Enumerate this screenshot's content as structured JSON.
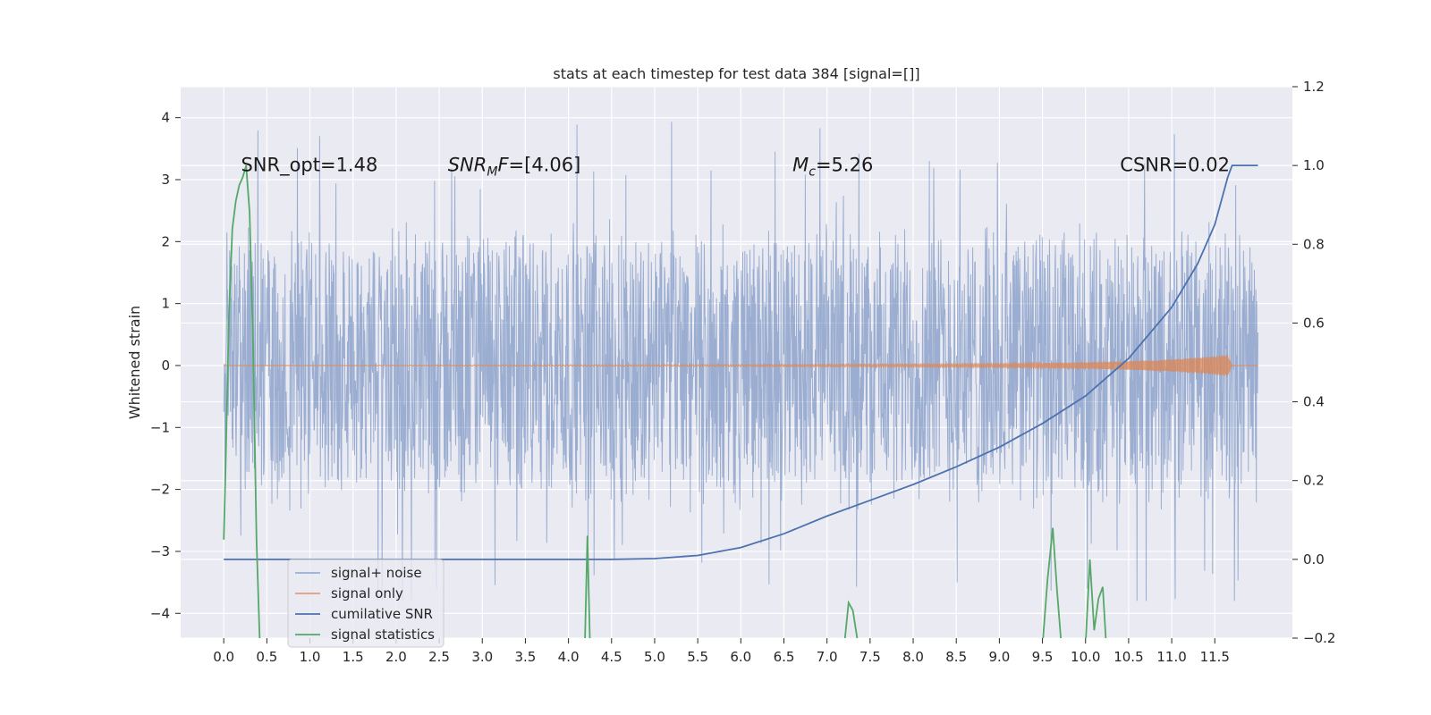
{
  "chart_data": {
    "type": "line",
    "title": "stats at each timestep for test data 384 [signal=[]]",
    "ylabel": "Whitened strain",
    "ylabel_right": "",
    "xlabel": "",
    "xlim": [
      -0.5,
      12.4
    ],
    "ylim": [
      -4.4,
      4.5
    ],
    "ylim_right": [
      -0.2,
      1.2
    ],
    "x_ticks": [
      0.0,
      0.5,
      1.0,
      1.5,
      2.0,
      2.5,
      3.0,
      3.5,
      4.0,
      4.5,
      5.0,
      5.5,
      6.0,
      6.5,
      7.0,
      7.5,
      8.0,
      8.5,
      9.0,
      9.5,
      10.0,
      10.5,
      11.0,
      11.5
    ],
    "y_ticks": [
      -4,
      -3,
      -2,
      -1,
      0,
      1,
      2,
      3,
      4
    ],
    "y_ticks_right": [
      -0.2,
      0.0,
      0.2,
      0.4,
      0.6,
      0.8,
      1.0,
      1.2
    ],
    "grid": true,
    "annotations": [
      {
        "x": 0.2,
        "y": 3.25,
        "text": "SNR_opt=1.48",
        "math": false
      },
      {
        "x": 2.6,
        "y": 3.25,
        "text": "[4.06]",
        "math": true,
        "kind": "snr_mf"
      },
      {
        "x": 6.6,
        "y": 3.25,
        "text": "=5.26",
        "math": true,
        "kind": "mc"
      },
      {
        "x": 10.4,
        "y": 3.25,
        "text": "CSNR=0.02",
        "math": false
      }
    ],
    "series": [
      {
        "name": "signal+ noise",
        "color": "#4c72b0",
        "axis": "left",
        "noise": {
          "x_start": 0.0,
          "x_end": 12.0,
          "envelope": 2.4,
          "max": 4.1,
          "min": -3.8
        }
      },
      {
        "name": "signal only",
        "color": "#dd8452",
        "axis": "left",
        "x": [
          0.0,
          2.0,
          4.0,
          6.0,
          8.0,
          9.0,
          10.0,
          10.5,
          11.0,
          11.3,
          11.55,
          11.65,
          11.7,
          12.0
        ],
        "amplitude": [
          0.0,
          0.005,
          0.01,
          0.015,
          0.025,
          0.03,
          0.05,
          0.07,
          0.1,
          0.13,
          0.16,
          0.18,
          0.0,
          0.0
        ]
      },
      {
        "name": "cumilative SNR",
        "color": "#4c72b0",
        "axis": "right",
        "x": [
          0.0,
          3.0,
          4.5,
          5.0,
          5.5,
          6.0,
          6.5,
          7.0,
          7.5,
          8.0,
          8.5,
          9.0,
          9.5,
          10.0,
          10.5,
          11.0,
          11.3,
          11.5,
          11.65,
          11.7,
          12.0
        ],
        "y": [
          0.0,
          0.0,
          0.0,
          0.002,
          0.01,
          0.03,
          0.065,
          0.11,
          0.15,
          0.19,
          0.235,
          0.285,
          0.345,
          0.415,
          0.51,
          0.64,
          0.75,
          0.85,
          0.97,
          1.0,
          1.0
        ]
      },
      {
        "name": "signal statistics",
        "color": "#55a868",
        "axis": "right",
        "x": [
          0.0,
          0.02,
          0.06,
          0.1,
          0.14,
          0.18,
          0.22,
          0.26,
          0.3,
          0.34,
          0.38,
          0.42,
          4.19,
          4.22,
          4.25,
          4.28,
          7.2,
          7.25,
          7.3,
          7.35,
          7.38,
          9.5,
          9.56,
          9.62,
          9.67,
          9.72,
          9.76,
          10.0,
          10.05,
          10.1,
          10.15,
          10.2,
          10.24,
          10.3
        ],
        "y": [
          0.05,
          0.22,
          0.62,
          0.84,
          0.91,
          0.95,
          0.97,
          1.0,
          0.88,
          0.55,
          0.05,
          -0.22,
          -0.22,
          0.06,
          -0.22,
          -0.22,
          -0.22,
          -0.11,
          -0.13,
          -0.2,
          -0.22,
          -0.22,
          -0.05,
          0.08,
          -0.08,
          -0.22,
          -0.22,
          -0.22,
          0.0,
          -0.18,
          -0.1,
          -0.07,
          -0.22,
          -0.22
        ]
      }
    ],
    "legend": {
      "placement": "lower-left",
      "entries": [
        "signal+ noise",
        "signal only",
        "cumilative SNR",
        "signal statistics"
      ]
    }
  }
}
